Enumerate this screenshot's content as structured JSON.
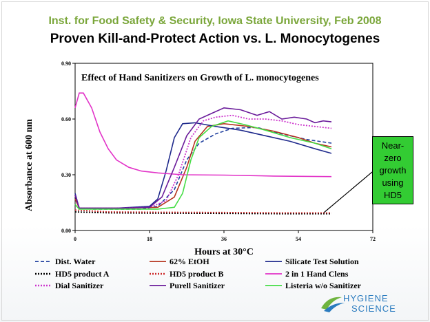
{
  "header": {
    "subtitle": "Inst. for Food Safety & Security, Iowa State University, Feb 2008",
    "title": "Proven Kill-and-Protect Action vs. L. Monocytogenes"
  },
  "callout": {
    "text": "Near-zero growth using HD5"
  },
  "logo": {
    "line1": "HYGIENE",
    "line2": "SCIENCE"
  },
  "chart_data": {
    "type": "line",
    "title": "Effect of  Hand Sanitizers on Growth of L. monocytogenes",
    "xlabel": "Hours at 30°C",
    "ylabel": "Absorbance at 600 nm",
    "xlim": [
      0,
      72
    ],
    "ylim": [
      0,
      0.9
    ],
    "x_ticks": [
      "0",
      "18",
      "36",
      "54",
      "72"
    ],
    "y_ticks": [
      "0.00",
      "0.30",
      "0.60",
      "0.90"
    ],
    "grid": false,
    "legend_position": "bottom",
    "series": [
      {
        "name": "Dist. Water",
        "color": "#1f3f9e",
        "style": "dashed",
        "points": [
          [
            0,
            0.19
          ],
          [
            1,
            0.12
          ],
          [
            4,
            0.115
          ],
          [
            10,
            0.115
          ],
          [
            16,
            0.115
          ],
          [
            20,
            0.13
          ],
          [
            24,
            0.22
          ],
          [
            27,
            0.38
          ],
          [
            30,
            0.47
          ],
          [
            34,
            0.52
          ],
          [
            38,
            0.55
          ],
          [
            44,
            0.555
          ],
          [
            50,
            0.52
          ],
          [
            56,
            0.49
          ],
          [
            62,
            0.47
          ]
        ]
      },
      {
        "name": "62% EtOH",
        "color": "#b5341f",
        "style": "solid",
        "points": [
          [
            0,
            0.17
          ],
          [
            1,
            0.12
          ],
          [
            10,
            0.12
          ],
          [
            20,
            0.125
          ],
          [
            24,
            0.18
          ],
          [
            27,
            0.34
          ],
          [
            29,
            0.48
          ],
          [
            32,
            0.56
          ],
          [
            36,
            0.575
          ],
          [
            42,
            0.56
          ],
          [
            48,
            0.535
          ],
          [
            54,
            0.5
          ],
          [
            58,
            0.47
          ],
          [
            62,
            0.45
          ]
        ]
      },
      {
        "name": "Silicate Test Solution",
        "color": "#1f2a8c",
        "style": "solid",
        "points": [
          [
            0,
            0.2
          ],
          [
            1,
            0.12
          ],
          [
            10,
            0.12
          ],
          [
            18,
            0.13
          ],
          [
            20,
            0.17
          ],
          [
            22,
            0.32
          ],
          [
            24,
            0.5
          ],
          [
            26,
            0.575
          ],
          [
            29,
            0.58
          ],
          [
            34,
            0.56
          ],
          [
            40,
            0.54
          ],
          [
            46,
            0.51
          ],
          [
            52,
            0.48
          ],
          [
            58,
            0.44
          ],
          [
            62,
            0.415
          ]
        ]
      },
      {
        "name": "HD5 product  A",
        "color": "#000000",
        "style": "dotted",
        "points": [
          [
            0,
            0.1
          ],
          [
            8,
            0.095
          ],
          [
            20,
            0.093
          ],
          [
            36,
            0.092
          ],
          [
            50,
            0.09
          ],
          [
            62,
            0.09
          ]
        ]
      },
      {
        "name": "HD5 product  B",
        "color": "#cc2a2a",
        "style": "dotted",
        "points": [
          [
            0,
            0.11
          ],
          [
            8,
            0.1
          ],
          [
            20,
            0.098
          ],
          [
            36,
            0.097
          ],
          [
            50,
            0.095
          ],
          [
            62,
            0.095
          ]
        ]
      },
      {
        "name": "2 in 1 Hand Clens",
        "color": "#e233c8",
        "style": "solid",
        "points": [
          [
            0,
            0.66
          ],
          [
            1,
            0.74
          ],
          [
            2,
            0.74
          ],
          [
            4,
            0.66
          ],
          [
            6,
            0.53
          ],
          [
            8,
            0.44
          ],
          [
            10,
            0.38
          ],
          [
            13,
            0.34
          ],
          [
            16,
            0.32
          ],
          [
            20,
            0.31
          ],
          [
            26,
            0.3
          ],
          [
            36,
            0.298
          ],
          [
            48,
            0.293
          ],
          [
            62,
            0.29
          ]
        ]
      },
      {
        "name": "Dial Sanitizer",
        "color": "#cc33cc",
        "style": "dotted",
        "points": [
          [
            0,
            0.19
          ],
          [
            1,
            0.12
          ],
          [
            10,
            0.12
          ],
          [
            18,
            0.125
          ],
          [
            22,
            0.16
          ],
          [
            25,
            0.3
          ],
          [
            28,
            0.5
          ],
          [
            31,
            0.59
          ],
          [
            34,
            0.61
          ],
          [
            38,
            0.62
          ],
          [
            42,
            0.6
          ],
          [
            46,
            0.6
          ],
          [
            50,
            0.59
          ],
          [
            54,
            0.57
          ],
          [
            58,
            0.56
          ],
          [
            62,
            0.55
          ]
        ]
      },
      {
        "name": "Purell Sanitizer",
        "color": "#6a1b9a",
        "style": "solid",
        "points": [
          [
            0,
            0.19
          ],
          [
            1,
            0.12
          ],
          [
            10,
            0.12
          ],
          [
            18,
            0.125
          ],
          [
            21,
            0.18
          ],
          [
            24,
            0.34
          ],
          [
            27,
            0.51
          ],
          [
            30,
            0.6
          ],
          [
            33,
            0.63
          ],
          [
            36,
            0.66
          ],
          [
            40,
            0.65
          ],
          [
            44,
            0.62
          ],
          [
            47,
            0.64
          ],
          [
            50,
            0.6
          ],
          [
            53,
            0.61
          ],
          [
            56,
            0.6
          ],
          [
            58,
            0.58
          ],
          [
            60,
            0.59
          ],
          [
            62,
            0.585
          ]
        ]
      },
      {
        "name": "Listeria w/o Sanitizer",
        "color": "#44dd44",
        "style": "solid",
        "points": [
          [
            0,
            0.14
          ],
          [
            1,
            0.115
          ],
          [
            10,
            0.115
          ],
          [
            20,
            0.115
          ],
          [
            24,
            0.125
          ],
          [
            26,
            0.2
          ],
          [
            28,
            0.38
          ],
          [
            30,
            0.5
          ],
          [
            33,
            0.56
          ],
          [
            37,
            0.59
          ],
          [
            41,
            0.57
          ],
          [
            46,
            0.54
          ],
          [
            52,
            0.5
          ],
          [
            58,
            0.47
          ],
          [
            62,
            0.44
          ]
        ]
      }
    ]
  }
}
